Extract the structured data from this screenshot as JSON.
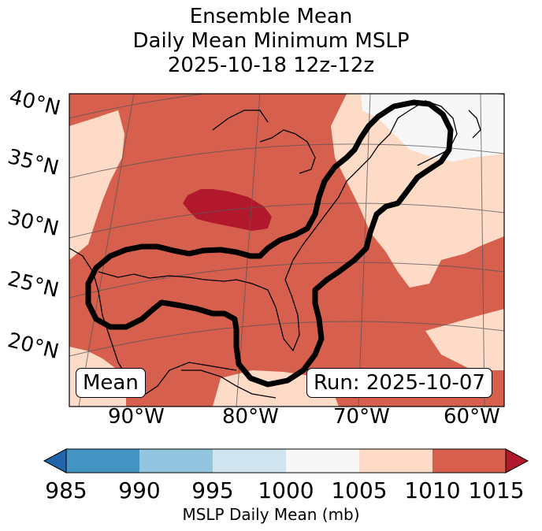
{
  "title": {
    "line1": "Ensemble Mean",
    "line2": "Daily Mean Minimum MSLP",
    "line3": "2025-10-18 12z-12z"
  },
  "map": {
    "lat_labels": [
      "40°N",
      "35°N",
      "30°N",
      "25°N",
      "20°N"
    ],
    "lon_labels": [
      "90°W",
      "80°W",
      "70°W",
      "60°W"
    ],
    "mean_label": "Mean",
    "run_label": "Run: 2025-10-07",
    "colors": {
      "c1000_1005": "#f7f7f7",
      "c1005_1010": "#fddbc7",
      "c1010_1015": "#d6604d",
      "c_above_1015": "#b2182b",
      "outline": "#000000"
    }
  },
  "colorbar": {
    "ticks": [
      "985",
      "990",
      "995",
      "1000",
      "1005",
      "1010",
      "1015"
    ],
    "label": "MSLP Daily Mean (mb)",
    "colors": [
      "#2166ac",
      "#4393c3",
      "#92c5de",
      "#d1e5f0",
      "#f7f7f7",
      "#fddbc7",
      "#d6604d",
      "#b2182b"
    ]
  }
}
